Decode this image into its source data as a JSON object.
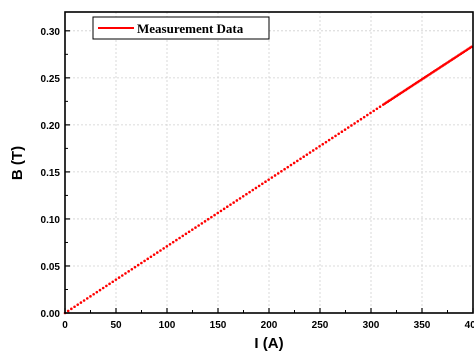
{
  "chart_data": {
    "type": "scatter",
    "title": "",
    "xlabel": "I (A)",
    "ylabel": "B (T)",
    "xlim": [
      0,
      400
    ],
    "ylim": [
      0,
      0.32
    ],
    "x_ticks": [
      "0",
      "50",
      "100",
      "150",
      "200",
      "250",
      "300",
      "350",
      "400"
    ],
    "y_ticks": [
      "0.00",
      "0.05",
      "0.10",
      "0.15",
      "0.20",
      "0.25",
      "0.30"
    ],
    "grid": true,
    "legend_position": "top-left",
    "series": [
      {
        "name": "Measurement Data",
        "color": "#ff0000",
        "marker": "dot",
        "x_start": 0,
        "x_end": 400,
        "y_start": 0,
        "y_end": 0.284,
        "points_per_segment": [
          {
            "x_from": 0,
            "x_to": 312,
            "count": 100
          },
          {
            "x_from": 312,
            "x_to": 400,
            "count": 60
          }
        ]
      }
    ]
  }
}
